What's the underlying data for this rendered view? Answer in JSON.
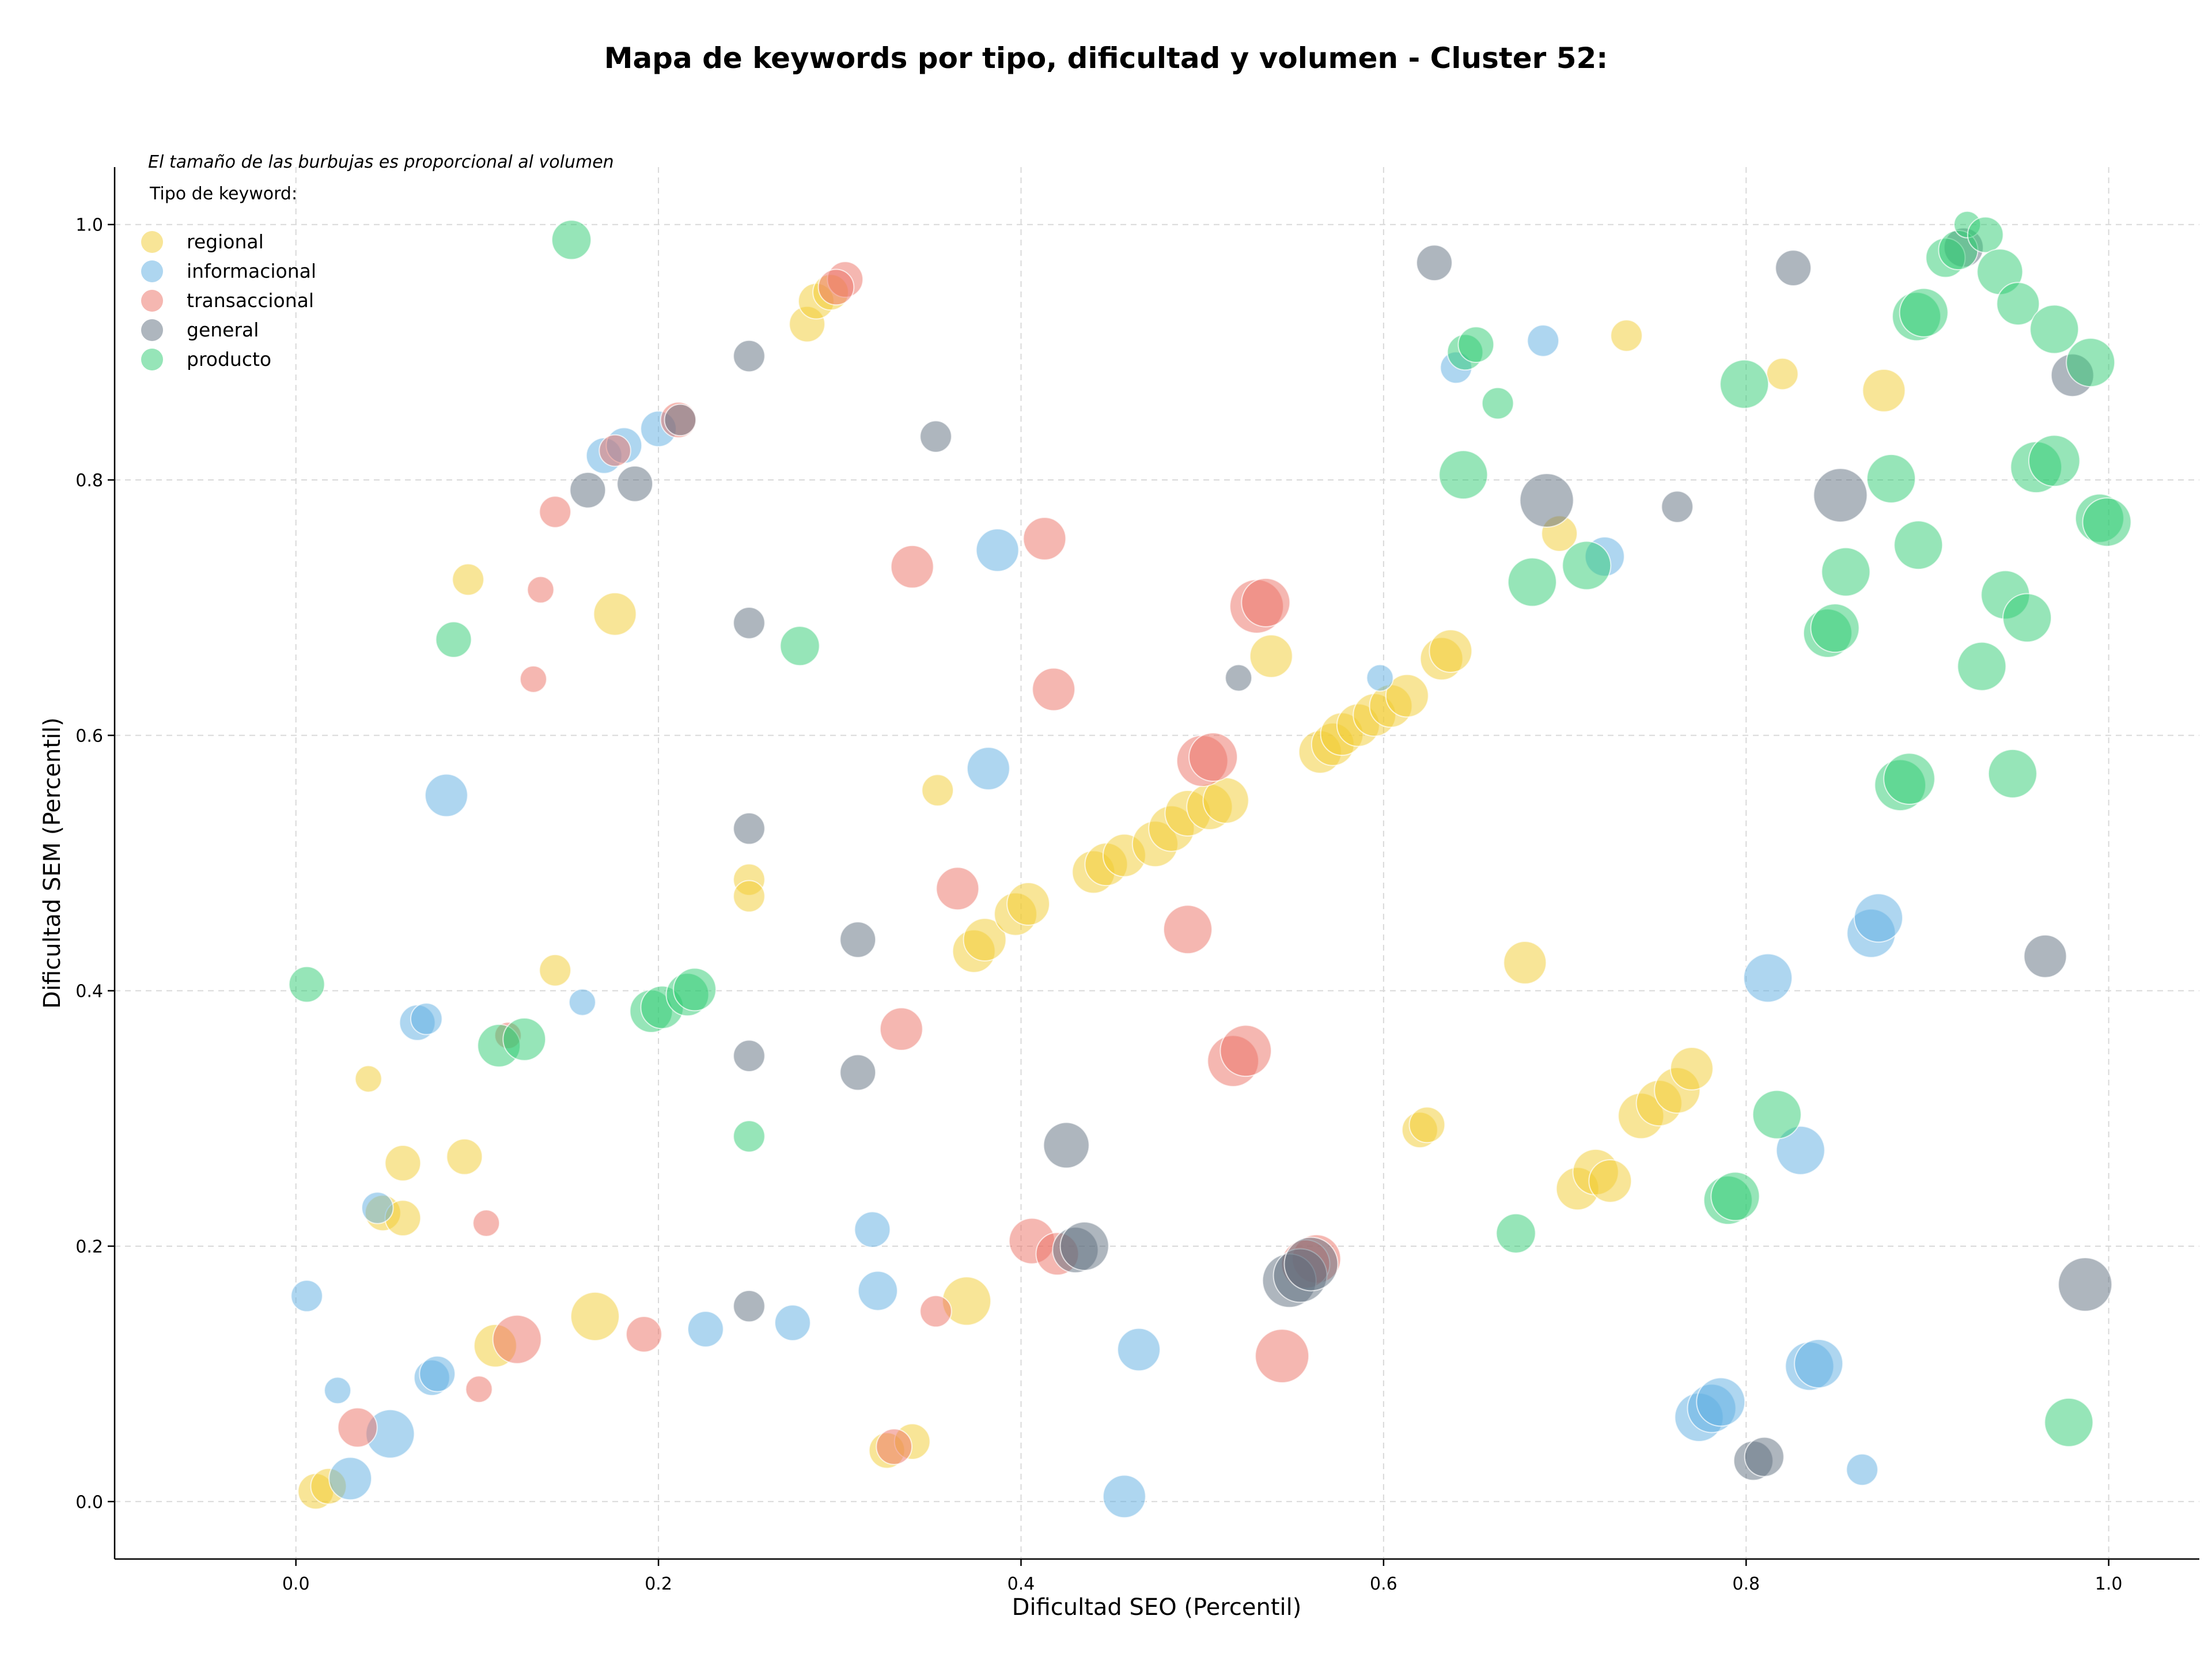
{
  "chart_data": {
    "type": "scatter",
    "title": "Mapa de keywords por tipo, dificultad y volumen - Cluster 52:",
    "xlabel": "Dificultad SEO (Percentil)",
    "ylabel": "Dificultad SEM (Percentil)",
    "xlim": [
      -0.1,
      1.05
    ],
    "ylim": [
      -0.045,
      1.045
    ],
    "xticks": [
      "0.0",
      "0.2",
      "0.4",
      "0.6",
      "0.8",
      "1.0"
    ],
    "yticks": [
      "0.0",
      "0.2",
      "0.4",
      "0.6",
      "0.8",
      "1.0"
    ],
    "grid": true,
    "bubble_note": "El tamaño de las burbujas es proporcional al volumen",
    "legend_title": "Tipo de keyword:",
    "legend_position": "top-left",
    "series": [
      {
        "name": "regional",
        "color": "#f2cc2f",
        "points": [
          [
            0.011,
            0.008,
            2
          ],
          [
            0.018,
            0.012,
            2
          ],
          [
            0.04,
            0.331,
            1
          ],
          [
            0.048,
            0.226,
            2
          ],
          [
            0.059,
            0.265,
            2
          ],
          [
            0.059,
            0.222,
            2
          ],
          [
            0.093,
            0.27,
            2
          ],
          [
            0.095,
            0.722,
            1.5
          ],
          [
            0.11,
            0.122,
            3
          ],
          [
            0.143,
            0.416,
            1.5
          ],
          [
            0.165,
            0.145,
            4
          ],
          [
            0.176,
            0.695,
            3
          ],
          [
            0.25,
            0.487,
            1.5
          ],
          [
            0.25,
            0.474,
            1.5
          ],
          [
            0.282,
            0.922,
            2
          ],
          [
            0.287,
            0.94,
            2
          ],
          [
            0.295,
            0.947,
            2
          ],
          [
            0.326,
            0.04,
            2
          ],
          [
            0.34,
            0.047,
            2
          ],
          [
            0.354,
            0.557,
            1.5
          ],
          [
            0.37,
            0.157,
            4
          ],
          [
            0.374,
            0.431,
            3
          ],
          [
            0.38,
            0.44,
            3
          ],
          [
            0.397,
            0.46,
            3
          ],
          [
            0.404,
            0.468,
            3
          ],
          [
            0.44,
            0.493,
            3
          ],
          [
            0.447,
            0.499,
            3
          ],
          [
            0.457,
            0.506,
            3
          ],
          [
            0.474,
            0.515,
            3.5
          ],
          [
            0.483,
            0.527,
            3.5
          ],
          [
            0.492,
            0.539,
            3.5
          ],
          [
            0.504,
            0.544,
            3.5
          ],
          [
            0.513,
            0.549,
            3.5
          ],
          [
            0.538,
            0.662,
            3
          ],
          [
            0.565,
            0.587,
            3
          ],
          [
            0.572,
            0.593,
            3
          ],
          [
            0.577,
            0.601,
            3
          ],
          [
            0.586,
            0.608,
            3
          ],
          [
            0.595,
            0.616,
            3
          ],
          [
            0.604,
            0.623,
            3
          ],
          [
            0.613,
            0.631,
            3
          ],
          [
            0.632,
            0.66,
            3
          ],
          [
            0.637,
            0.666,
            3
          ],
          [
            0.62,
            0.291,
            2
          ],
          [
            0.624,
            0.295,
            2
          ],
          [
            0.697,
            0.758,
            2
          ],
          [
            0.678,
            0.422,
            3
          ],
          [
            0.707,
            0.245,
            3
          ],
          [
            0.717,
            0.258,
            3.5
          ],
          [
            0.725,
            0.251,
            3
          ],
          [
            0.742,
            0.302,
            3.5
          ],
          [
            0.752,
            0.312,
            3.5
          ],
          [
            0.762,
            0.322,
            3.5
          ],
          [
            0.77,
            0.339,
            3
          ],
          [
            0.734,
            0.913,
            1.5
          ],
          [
            0.82,
            0.883,
            1.5
          ],
          [
            0.876,
            0.87,
            3
          ]
        ]
      },
      {
        "name": "informacional",
        "color": "#5dade2",
        "points": [
          [
            0.006,
            0.161,
            1.5
          ],
          [
            0.023,
            0.087,
            1
          ],
          [
            0.03,
            0.018,
            3
          ],
          [
            0.045,
            0.23,
            1.5
          ],
          [
            0.052,
            0.053,
            4
          ],
          [
            0.067,
            0.375,
            2
          ],
          [
            0.072,
            0.378,
            1.5
          ],
          [
            0.075,
            0.097,
            2
          ],
          [
            0.078,
            0.1,
            2
          ],
          [
            0.083,
            0.553,
            3
          ],
          [
            0.158,
            0.391,
            1
          ],
          [
            0.17,
            0.819,
            2
          ],
          [
            0.181,
            0.827,
            2
          ],
          [
            0.2,
            0.84,
            2
          ],
          [
            0.226,
            0.135,
            2
          ],
          [
            0.274,
            0.14,
            2
          ],
          [
            0.318,
            0.213,
            2
          ],
          [
            0.321,
            0.165,
            2.5
          ],
          [
            0.382,
            0.574,
            3
          ],
          [
            0.387,
            0.745,
            3
          ],
          [
            0.457,
            0.004,
            3
          ],
          [
            0.465,
            0.119,
            3
          ],
          [
            0.598,
            0.645,
            1
          ],
          [
            0.64,
            0.888,
            1.5
          ],
          [
            0.688,
            0.909,
            1.5
          ],
          [
            0.722,
            0.74,
            2.5
          ],
          [
            0.774,
            0.066,
            4
          ],
          [
            0.781,
            0.073,
            4
          ],
          [
            0.786,
            0.078,
            4
          ],
          [
            0.812,
            0.41,
            4
          ],
          [
            0.83,
            0.275,
            4
          ],
          [
            0.835,
            0.106,
            4
          ],
          [
            0.84,
            0.108,
            4
          ],
          [
            0.864,
            0.025,
            1.5
          ],
          [
            0.869,
            0.445,
            4
          ],
          [
            0.873,
            0.457,
            4
          ]
        ]
      },
      {
        "name": "transaccional",
        "color": "#ec7063",
        "points": [
          [
            0.034,
            0.058,
            2.5
          ],
          [
            0.101,
            0.088,
            1
          ],
          [
            0.105,
            0.218,
            1
          ],
          [
            0.117,
            0.365,
            1
          ],
          [
            0.122,
            0.127,
            4
          ],
          [
            0.131,
            0.644,
            1
          ],
          [
            0.135,
            0.714,
            1
          ],
          [
            0.143,
            0.775,
            1.5
          ],
          [
            0.176,
            0.823,
            1.5
          ],
          [
            0.192,
            0.131,
            2
          ],
          [
            0.211,
            0.847,
            2
          ],
          [
            0.303,
            0.957,
            2
          ],
          [
            0.298,
            0.951,
            2
          ],
          [
            0.33,
            0.043,
            2
          ],
          [
            0.334,
            0.37,
            3
          ],
          [
            0.34,
            0.732,
            3
          ],
          [
            0.353,
            0.149,
            1.5
          ],
          [
            0.365,
            0.48,
            3
          ],
          [
            0.406,
            0.204,
            3.5
          ],
          [
            0.413,
            0.754,
            3
          ],
          [
            0.418,
            0.636,
            3
          ],
          [
            0.42,
            0.194,
            3
          ],
          [
            0.492,
            0.448,
            4
          ],
          [
            0.5,
            0.58,
            4.5
          ],
          [
            0.506,
            0.583,
            4
          ],
          [
            0.517,
            0.345,
            4.5
          ],
          [
            0.524,
            0.353,
            4.5
          ],
          [
            0.53,
            0.701,
            5
          ],
          [
            0.535,
            0.704,
            4
          ],
          [
            0.544,
            0.114,
            5
          ],
          [
            0.563,
            0.19,
            4
          ],
          [
            0.557,
            0.186,
            4
          ]
        ]
      },
      {
        "name": "general",
        "color": "#5d6d7e",
        "points": [
          [
            0.161,
            0.792,
            2
          ],
          [
            0.187,
            0.797,
            2
          ],
          [
            0.212,
            0.847,
            1.5
          ],
          [
            0.25,
            0.897,
            1.5
          ],
          [
            0.25,
            0.688,
            1.5
          ],
          [
            0.25,
            0.527,
            1.5
          ],
          [
            0.25,
            0.349,
            1.5
          ],
          [
            0.25,
            0.153,
            1.5
          ],
          [
            0.31,
            0.44,
            2
          ],
          [
            0.31,
            0.336,
            2
          ],
          [
            0.353,
            0.834,
            1.5
          ],
          [
            0.425,
            0.279,
            3.5
          ],
          [
            0.43,
            0.197,
            3.5
          ],
          [
            0.435,
            0.2,
            4
          ],
          [
            0.52,
            0.645,
            1
          ],
          [
            0.548,
            0.173,
            5
          ],
          [
            0.554,
            0.177,
            5
          ],
          [
            0.56,
            0.186,
            5
          ],
          [
            0.628,
            0.97,
            2
          ],
          [
            0.69,
            0.784,
            5
          ],
          [
            0.762,
            0.779,
            1.5
          ],
          [
            0.804,
            0.032,
            2.5
          ],
          [
            0.81,
            0.035,
            2.5
          ],
          [
            0.826,
            0.966,
            2
          ],
          [
            0.852,
            0.788,
            5
          ],
          [
            0.92,
            0.982,
            2.5
          ],
          [
            0.965,
            0.427,
            3
          ],
          [
            0.98,
            0.882,
            3
          ],
          [
            0.987,
            0.17,
            5
          ]
        ]
      },
      {
        "name": "producto",
        "color": "#2ecc71",
        "points": [
          [
            0.006,
            0.405,
            2
          ],
          [
            0.087,
            0.675,
            2
          ],
          [
            0.112,
            0.357,
            3
          ],
          [
            0.126,
            0.362,
            3
          ],
          [
            0.152,
            0.988,
            2.5
          ],
          [
            0.196,
            0.384,
            3
          ],
          [
            0.202,
            0.387,
            3
          ],
          [
            0.216,
            0.397,
            3
          ],
          [
            0.22,
            0.401,
            3
          ],
          [
            0.25,
            0.286,
            1.5
          ],
          [
            0.278,
            0.67,
            2.5
          ],
          [
            0.645,
            0.9,
            2
          ],
          [
            0.651,
            0.906,
            2
          ],
          [
            0.663,
            0.86,
            1.5
          ],
          [
            0.644,
            0.804,
            4
          ],
          [
            0.682,
            0.72,
            4
          ],
          [
            0.712,
            0.733,
            4
          ],
          [
            0.673,
            0.21,
            2.5
          ],
          [
            0.799,
            0.875,
            4
          ],
          [
            0.817,
            0.303,
            4
          ],
          [
            0.79,
            0.236,
            4
          ],
          [
            0.794,
            0.239,
            4
          ],
          [
            0.845,
            0.68,
            4
          ],
          [
            0.849,
            0.684,
            4
          ],
          [
            0.855,
            0.728,
            4
          ],
          [
            0.88,
            0.801,
            4
          ],
          [
            0.895,
            0.749,
            4
          ],
          [
            0.885,
            0.561,
            4.5
          ],
          [
            0.89,
            0.566,
            4.5
          ],
          [
            0.894,
            0.928,
            4
          ],
          [
            0.898,
            0.931,
            4
          ],
          [
            0.91,
            0.974,
            2.5
          ],
          [
            0.917,
            0.98,
            2.5
          ],
          [
            0.922,
            1.0,
            1
          ],
          [
            0.932,
            0.992,
            2
          ],
          [
            0.93,
            0.654,
            4
          ],
          [
            0.94,
            0.963,
            3.5
          ],
          [
            0.943,
            0.71,
            4
          ],
          [
            0.95,
            0.938,
            3
          ],
          [
            0.955,
            0.692,
            4
          ],
          [
            0.947,
            0.57,
            4
          ],
          [
            0.96,
            0.81,
            4.5
          ],
          [
            0.97,
            0.815,
            4.5
          ],
          [
            0.97,
            0.918,
            4
          ],
          [
            0.99,
            0.892,
            4
          ],
          [
            0.995,
            0.77,
            4
          ],
          [
            0.999,
            0.767,
            4
          ],
          [
            0.978,
            0.062,
            4
          ]
        ]
      }
    ]
  }
}
